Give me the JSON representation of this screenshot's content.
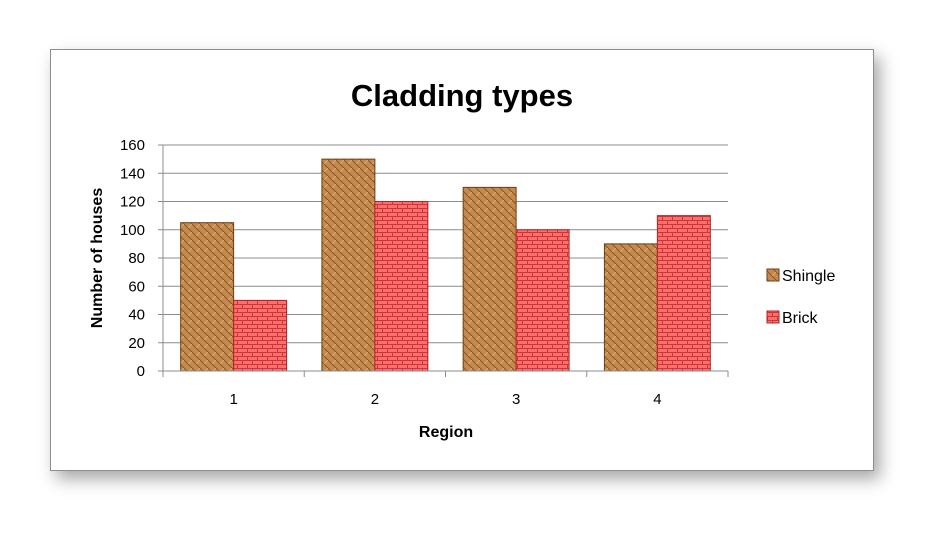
{
  "chart_data": {
    "type": "bar",
    "title": "Cladding types",
    "xlabel": "Region",
    "ylabel": "Number of houses",
    "categories": [
      "1",
      "2",
      "3",
      "4"
    ],
    "series": [
      {
        "name": "Shingle",
        "values": [
          105,
          150,
          130,
          90
        ],
        "color": "#c58a4e",
        "pattern": "shingle"
      },
      {
        "name": "Brick",
        "values": [
          50,
          120,
          100,
          110
        ],
        "color": "#ff6d6d",
        "pattern": "brick"
      }
    ],
    "ylim": [
      0,
      160
    ],
    "yticks": [
      0,
      20,
      40,
      60,
      80,
      100,
      120,
      140,
      160
    ],
    "grid": true,
    "legend_position": "right"
  }
}
